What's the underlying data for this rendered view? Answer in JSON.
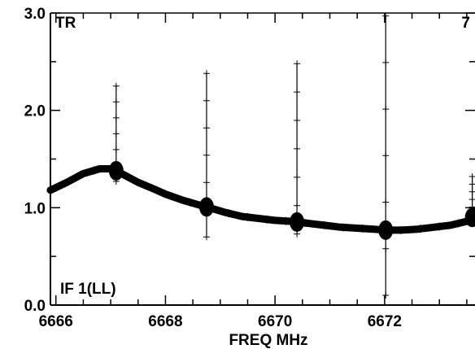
{
  "chart_data": {
    "type": "line",
    "title": "",
    "xlabel": "FREQ MHz",
    "ylabel": "",
    "xlim": [
      6665.9,
      6673.65
    ],
    "ylim": [
      0.0,
      3.0
    ],
    "x_ticks": [
      6666,
      6668,
      6670,
      6672
    ],
    "x_tick_labels": [
      "6666",
      "6668",
      "6670",
      "6672"
    ],
    "y_ticks": [
      0.0,
      1.0,
      2.0,
      3.0
    ],
    "y_tick_labels": [
      "0.0",
      "1.0",
      "2.0",
      "3.0"
    ],
    "annotations": {
      "top_left": "TR",
      "top_right": "7",
      "bottom_left": "IF 1(LL)"
    },
    "series": [
      {
        "marker": "plus",
        "baseline": {
          "x": [
            6665.9,
            6666.2,
            6666.5,
            6666.8,
            6667.0,
            6667.1,
            6667.3,
            6667.5,
            6667.8,
            6668.0,
            6668.3,
            6668.6,
            6668.8,
            6669.1,
            6669.4,
            6669.7,
            6670.0,
            6670.3,
            6670.6,
            6670.9,
            6671.2,
            6671.5,
            6671.8,
            6672.0,
            6672.3,
            6672.6,
            6672.9,
            6673.2,
            6673.5,
            6673.65
          ],
          "y": [
            1.18,
            1.26,
            1.35,
            1.4,
            1.4,
            1.38,
            1.32,
            1.26,
            1.19,
            1.14,
            1.08,
            1.03,
            1.0,
            0.95,
            0.91,
            0.89,
            0.87,
            0.86,
            0.84,
            0.82,
            0.8,
            0.79,
            0.78,
            0.77,
            0.77,
            0.78,
            0.8,
            0.82,
            0.86,
            0.92
          ]
        },
        "spikes": [
          {
            "x": 6667.1,
            "top": 2.25,
            "bottom": 1.27
          },
          {
            "x": 6668.75,
            "top": 2.38,
            "bottom": 0.7
          },
          {
            "x": 6670.4,
            "top": 2.48,
            "bottom": 0.73
          },
          {
            "x": 6672.02,
            "top": 2.97,
            "bottom": 0.1
          },
          {
            "x": 6673.6,
            "top": 1.32,
            "bottom": 0.85
          }
        ]
      }
    ],
    "grid": false,
    "legend": "none"
  }
}
